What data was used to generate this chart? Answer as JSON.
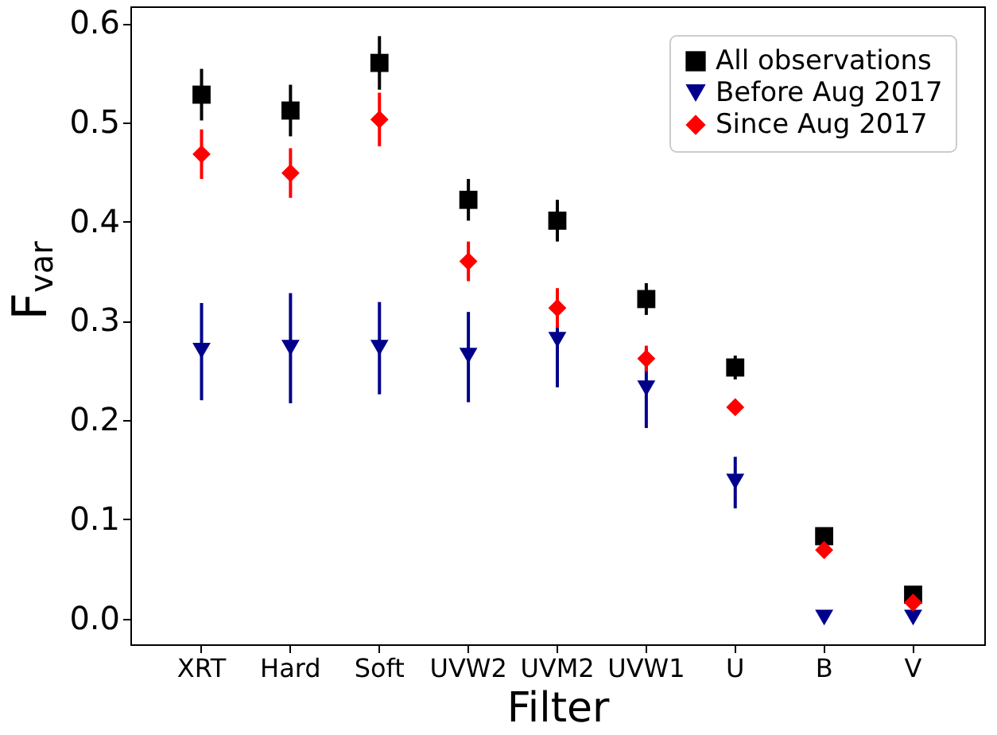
{
  "chart_data": {
    "type": "scatter",
    "xlabel": "Filter",
    "ylabel": "F$_{var}$",
    "categories": [
      "XRT",
      "Hard",
      "Soft",
      "UVW2",
      "UVM2",
      "UVW1",
      "U",
      "B",
      "V"
    ],
    "ylim": [
      -0.026,
      0.617
    ],
    "yticks": [
      {
        "value": 0,
        "label": "0.0"
      },
      0.1,
      0.2,
      0.3,
      0.4,
      0.5,
      0.6
    ],
    "grid": false,
    "legend": "top right",
    "series": [
      {
        "name": "All observations",
        "color": "#000000",
        "marker": "square",
        "values": [
          0.528,
          0.512,
          0.56,
          0.422,
          0.401,
          0.322,
          0.253,
          0.083,
          0.024
        ],
        "errors": [
          0.026,
          0.026,
          0.027,
          0.021,
          0.021,
          0.016,
          0.012,
          null,
          null
        ]
      },
      {
        "name": "Before Aug 2017",
        "color": "#00008b",
        "marker": "triangle",
        "values": [
          0.27,
          0.273,
          0.273,
          0.265,
          0.281,
          0.232,
          0.138,
          0.001,
          0.001
        ],
        "errors": [
          [
            0.22,
            0.318
          ],
          [
            0.217,
            0.328
          ],
          [
            0.226,
            0.319
          ],
          [
            0.218,
            0.309
          ],
          [
            0.233,
            0.323
          ],
          [
            0.192,
            0.272
          ],
          [
            0.111,
            0.163
          ],
          null,
          null
        ]
      },
      {
        "name": "Since Aug 2017",
        "color": "#ff0000",
        "marker": "diamond",
        "values": [
          0.468,
          0.449,
          0.503,
          0.36,
          0.313,
          0.262,
          0.213,
          0.069,
          0.016
        ],
        "errors": [
          0.025,
          0.025,
          0.027,
          0.02,
          0.02,
          0.013,
          0.006,
          null,
          null
        ]
      }
    ]
  }
}
